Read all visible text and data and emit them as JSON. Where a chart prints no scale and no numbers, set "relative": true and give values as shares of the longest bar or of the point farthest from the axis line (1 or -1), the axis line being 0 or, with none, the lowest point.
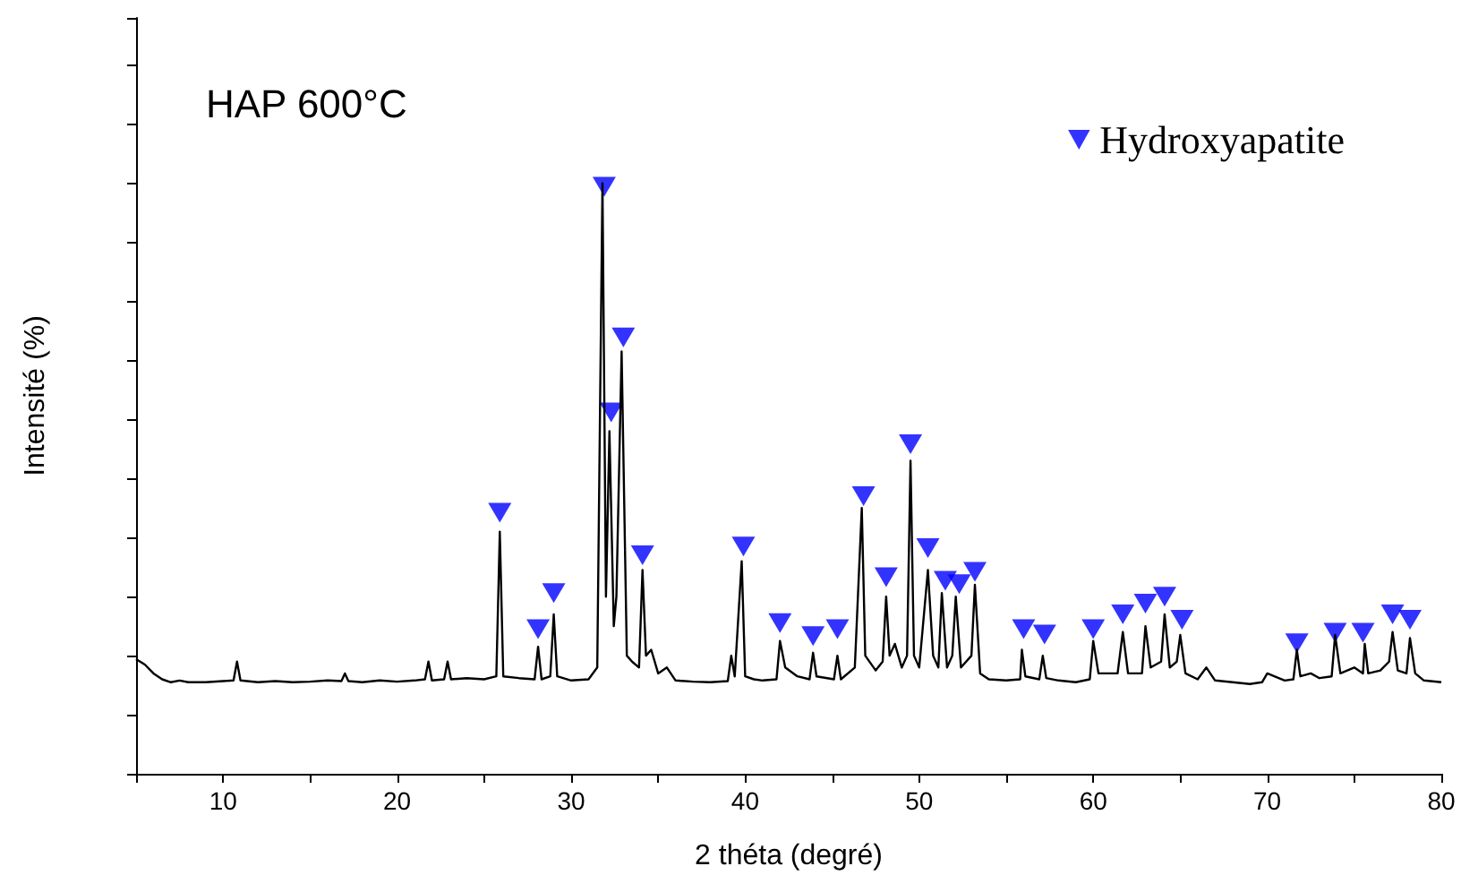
{
  "chart_data": {
    "type": "line",
    "relative": true,
    "title": "HAP 600°C",
    "xlabel": "2 théta (degré)",
    "ylabel": "Intensité (%)",
    "xlim": [
      5,
      80
    ],
    "xticks": [
      {
        "value": 5,
        "label": null
      },
      10,
      {
        "value": 15,
        "label": null
      },
      20,
      {
        "value": 25,
        "label": null
      },
      30,
      {
        "value": 35,
        "label": null
      },
      40,
      {
        "value": 45,
        "label": null
      },
      50,
      {
        "value": 55,
        "label": null
      },
      60,
      {
        "value": 65,
        "label": null
      },
      70,
      {
        "value": 75,
        "label": null
      },
      80
    ],
    "tick_labels": "x",
    "grid": false,
    "legend": "top right",
    "series": [
      {
        "color": "#000000",
        "marker": "none",
        "line_style": "solid",
        "x": [
          5,
          5.5,
          6,
          6.5,
          7,
          7.5,
          8,
          9,
          10,
          10.6,
          10.8,
          11,
          12,
          13,
          14,
          15,
          16,
          16.8,
          17,
          17.2,
          18,
          19,
          20,
          21,
          21.6,
          21.8,
          22,
          22.7,
          22.9,
          23.1,
          24,
          25,
          25.7,
          25.9,
          26.1,
          27,
          27.9,
          28.1,
          28.3,
          28.8,
          29.0,
          29.2,
          30,
          31,
          31.5,
          31.8,
          32.0,
          32.2,
          32.45,
          32.6,
          32.9,
          33.2,
          33.5,
          33.9,
          34.1,
          34.3,
          34.6,
          35.0,
          35.5,
          36,
          37,
          38,
          39,
          39.2,
          39.4,
          39.8,
          40.0,
          40.5,
          41,
          41.8,
          42.0,
          42.3,
          43,
          43.7,
          43.9,
          44.1,
          45.1,
          45.3,
          45.5,
          46.3,
          46.7,
          46.9,
          47.5,
          47.9,
          48.1,
          48.3,
          48.6,
          49.0,
          49.3,
          49.5,
          49.7,
          50.0,
          50.5,
          50.8,
          51.1,
          51.3,
          51.6,
          51.9,
          52.1,
          52.4,
          53.0,
          53.2,
          53.5,
          54,
          55,
          55.8,
          55.9,
          56.1,
          56.9,
          57.1,
          57.3,
          58,
          59,
          59.8,
          60.0,
          60.3,
          61.4,
          61.7,
          62.0,
          62.8,
          63.0,
          63.3,
          63.9,
          64.1,
          64.4,
          64.8,
          65.0,
          65.3,
          66,
          66.5,
          67,
          68,
          69,
          69.7,
          70,
          71,
          71.5,
          71.7,
          71.9,
          72.5,
          73,
          73.7,
          73.9,
          74.2,
          75,
          75.5,
          75.6,
          75.8,
          76.5,
          77.0,
          77.2,
          77.5,
          78.0,
          78.2,
          78.5,
          79,
          80
        ],
        "values": [
          0.194,
          0.185,
          0.17,
          0.16,
          0.155,
          0.158,
          0.155,
          0.155,
          0.157,
          0.158,
          0.19,
          0.158,
          0.155,
          0.157,
          0.155,
          0.156,
          0.158,
          0.157,
          0.17,
          0.157,
          0.155,
          0.158,
          0.156,
          0.158,
          0.16,
          0.19,
          0.158,
          0.16,
          0.19,
          0.16,
          0.162,
          0.16,
          0.165,
          0.41,
          0.165,
          0.162,
          0.16,
          0.215,
          0.16,
          0.165,
          0.27,
          0.165,
          0.158,
          0.16,
          0.18,
          1.0,
          0.3,
          0.58,
          0.25,
          0.3,
          0.715,
          0.2,
          0.19,
          0.18,
          0.345,
          0.2,
          0.21,
          0.17,
          0.18,
          0.158,
          0.156,
          0.155,
          0.157,
          0.2,
          0.165,
          0.36,
          0.165,
          0.16,
          0.158,
          0.16,
          0.225,
          0.18,
          0.165,
          0.16,
          0.205,
          0.165,
          0.16,
          0.2,
          0.16,
          0.18,
          0.45,
          0.2,
          0.175,
          0.19,
          0.3,
          0.2,
          0.22,
          0.18,
          0.2,
          0.53,
          0.2,
          0.18,
          0.345,
          0.2,
          0.18,
          0.306,
          0.18,
          0.2,
          0.3,
          0.18,
          0.2,
          0.32,
          0.17,
          0.16,
          0.158,
          0.16,
          0.21,
          0.165,
          0.16,
          0.2,
          0.162,
          0.158,
          0.155,
          0.16,
          0.225,
          0.17,
          0.17,
          0.24,
          0.17,
          0.17,
          0.25,
          0.18,
          0.19,
          0.27,
          0.18,
          0.19,
          0.235,
          0.17,
          0.16,
          0.18,
          0.158,
          0.155,
          0.152,
          0.155,
          0.17,
          0.158,
          0.16,
          0.21,
          0.165,
          0.17,
          0.162,
          0.165,
          0.235,
          0.17,
          0.18,
          0.17,
          0.22,
          0.17,
          0.175,
          0.19,
          0.24,
          0.175,
          0.17,
          0.23,
          0.17,
          0.158,
          0.155
        ]
      },
      {
        "type": "scatter",
        "name": "Hydroxyapatite",
        "color": "#0000ff",
        "marker": "triangle",
        "x": [
          25.9,
          28.1,
          29.0,
          31.9,
          32.3,
          33.0,
          34.1,
          39.9,
          42.0,
          43.9,
          45.3,
          46.8,
          48.1,
          49.5,
          50.5,
          51.5,
          52.3,
          53.2,
          56.0,
          57.2,
          60.0,
          61.7,
          63.0,
          64.1,
          65.1,
          71.7,
          73.9,
          75.5,
          77.2,
          78.2
        ],
        "values": [
          0.442,
          0.245,
          0.306,
          0.994,
          0.612,
          0.739,
          0.37,
          0.385,
          0.255,
          0.233,
          0.245,
          0.47,
          0.333,
          0.558,
          0.382,
          0.327,
          0.321,
          0.342,
          0.245,
          0.236,
          0.245,
          0.27,
          0.288,
          0.3,
          0.261,
          0.221,
          0.239,
          0.239,
          0.27,
          0.261
        ]
      }
    ]
  }
}
